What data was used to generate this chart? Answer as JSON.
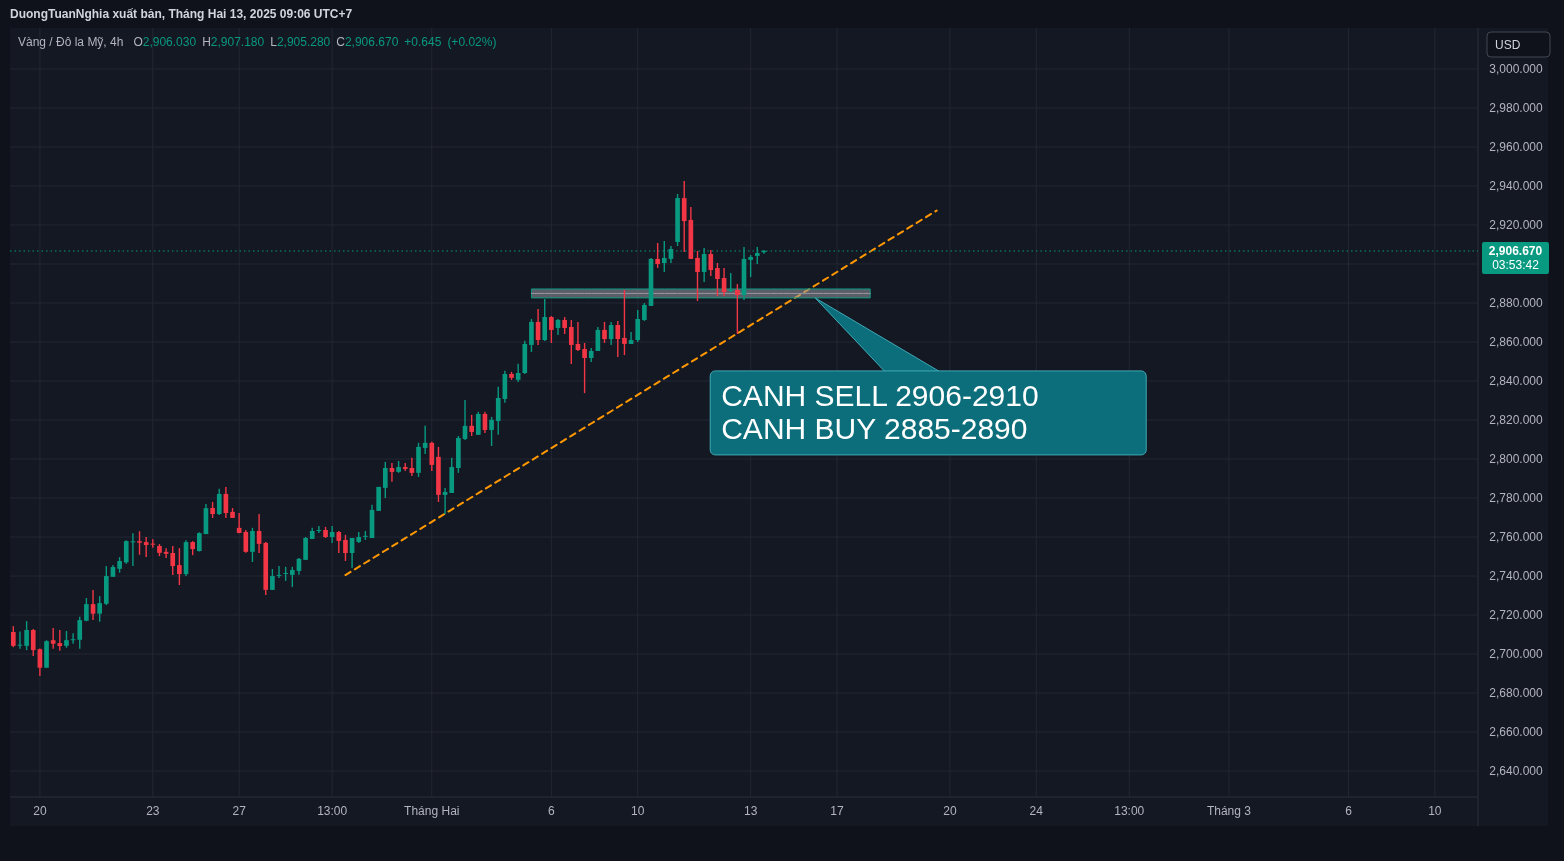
{
  "chart_data": {
    "type": "candlestick",
    "title": "Vàng / Đô la Mỹ, 4h",
    "subtitle": "O2,906.030 H2,907.180 L2,905.280 C2,906.670 +0.645 (+0.02%)",
    "categories": [
      null,
      null,
      null,
      null,
      "20",
      null,
      null,
      null,
      null,
      null,
      null,
      null,
      null,
      null,
      null,
      null,
      null,
      null,
      null,
      null,
      null,
      "23",
      null,
      null,
      null,
      null,
      null,
      null,
      null,
      null,
      null,
      null,
      null,
      null,
      "27",
      null,
      null,
      null,
      null,
      null,
      null,
      null,
      null,
      null,
      null,
      null,
      null,
      null,
      "13:00",
      null,
      null,
      null,
      null,
      null,
      null,
      null,
      null,
      null,
      null,
      null,
      null,
      null,
      null,
      "Tháng Hai",
      null,
      null,
      null,
      null,
      null,
      null,
      null,
      null,
      null,
      null,
      null,
      null,
      null,
      null,
      null,
      null,
      null,
      "6",
      null,
      null,
      null,
      null,
      null,
      null,
      null,
      null,
      null,
      null,
      null,
      null,
      "10",
      null,
      null,
      null,
      null,
      null,
      null,
      null,
      null,
      null,
      null,
      null,
      null,
      null,
      null,
      null,
      null,
      "13",
      null,
      null,
      null,
      null,
      null,
      null,
      null,
      null,
      null,
      null,
      null,
      null,
      "17",
      null,
      null,
      null,
      null,
      null,
      null,
      null,
      null,
      null,
      null,
      null,
      null,
      null,
      null,
      null,
      null,
      "20",
      null,
      null,
      null,
      null,
      null,
      null,
      null,
      null,
      null,
      null,
      null,
      null,
      "24",
      null,
      null,
      null,
      null,
      null,
      null,
      null,
      null,
      null,
      null,
      null,
      null,
      null,
      "13:00",
      null,
      null,
      null,
      null,
      null,
      null,
      null,
      null,
      null,
      null,
      null,
      null,
      null,
      null,
      "Tháng 3",
      null,
      null,
      null,
      null,
      null,
      null,
      null,
      null,
      null,
      null,
      null,
      null,
      null,
      null,
      null,
      null,
      null,
      "6",
      null,
      null,
      null,
      null,
      null,
      null,
      null,
      null,
      null,
      null,
      null,
      null,
      "10",
      null,
      null,
      null,
      null,
      null,
      null
    ],
    "ohlc": [
      [
        2711.3,
        2714.3,
        2703.5,
        2704.2
      ],
      [
        2704.5,
        2711.5,
        2702.7,
        2704.8
      ],
      [
        2704.2,
        2716.9,
        2702,
        2712.3
      ],
      [
        2712.3,
        2712.8,
        2699,
        2702
      ],
      [
        2702.5,
        2702.9,
        2688.7,
        2693
      ],
      [
        2693,
        2707.1,
        2693,
        2706.6
      ],
      [
        2707.1,
        2713.3,
        2702.7,
        2705.3
      ],
      [
        2705.6,
        2712.3,
        2701.7,
        2704.1
      ],
      [
        2704.2,
        2711.8,
        2703.2,
        2707.1
      ],
      [
        2707.2,
        2710.7,
        2705.3,
        2707.6
      ],
      [
        2707.3,
        2719.1,
        2702.7,
        2717.4
      ],
      [
        2717.1,
        2728.7,
        2716.8,
        2725.6
      ],
      [
        2725.6,
        2732.8,
        2717.4,
        2720.7
      ],
      [
        2720.7,
        2729.7,
        2716.6,
        2726.1
      ],
      [
        2725.8,
        2745.1,
        2725.1,
        2740
      ],
      [
        2739.6,
        2745.6,
        2739.6,
        2744.6
      ],
      [
        2743.7,
        2749.7,
        2741.7,
        2747.7
      ],
      [
        2747,
        2758.4,
        2746.3,
        2757.9
      ],
      [
        2757.6,
        2762,
        2745.1,
        2757.8
      ],
      [
        2757.9,
        2763,
        2750.9,
        2757.1
      ],
      [
        2757.4,
        2760,
        2749.7,
        2755.9
      ],
      [
        2756.6,
        2758.9,
        2754.5,
        2756.2
      ],
      [
        2755.4,
        2756.4,
        2750.2,
        2751.9
      ],
      [
        2752.4,
        2754.3,
        2749.2,
        2751.4
      ],
      [
        2751.8,
        2755.4,
        2740.5,
        2745.1
      ],
      [
        2745.6,
        2754.3,
        2735.4,
        2741
      ],
      [
        2741,
        2758.4,
        2740,
        2757.4
      ],
      [
        2757.4,
        2757.9,
        2750.7,
        2753.8
      ],
      [
        2752.8,
        2762.4,
        2752.6,
        2762
      ],
      [
        2761.5,
        2776.9,
        2761.5,
        2774.8
      ],
      [
        2774.9,
        2778,
        2769.8,
        2771.8
      ],
      [
        2771.8,
        2784.7,
        2771.3,
        2782.1
      ],
      [
        2782.1,
        2785.7,
        2769.8,
        2772.3
      ],
      [
        2772.9,
        2774.9,
        2769.8,
        2769.8
      ],
      [
        2764.7,
        2772.3,
        2762,
        2762.1
      ],
      [
        2762.6,
        2763.6,
        2752,
        2752.4
      ],
      [
        2752.4,
        2764.7,
        2747.2,
        2763.1
      ],
      [
        2763.1,
        2771.8,
        2751.8,
        2756.5
      ],
      [
        2757,
        2757.5,
        2730.3,
        2732.9
      ],
      [
        2732.9,
        2743.6,
        2732.9,
        2740
      ],
      [
        2740.3,
        2745.2,
        2739,
        2740.6
      ],
      [
        2741.4,
        2744.7,
        2737.5,
        2741.6
      ],
      [
        2740.6,
        2744.7,
        2734.4,
        2743.1
      ],
      [
        2742.6,
        2749.3,
        2740.6,
        2748.8
      ],
      [
        2748.3,
        2760,
        2748.3,
        2759.5
      ],
      [
        2759,
        2764.7,
        2759,
        2763.1
      ],
      [
        2763.3,
        2765.7,
        2762.1,
        2763.6
      ],
      [
        2763.6,
        2765.2,
        2759.5,
        2760
      ],
      [
        2760,
        2765.7,
        2757,
        2762.6
      ],
      [
        2762.6,
        2763.1,
        2751.8,
        2758
      ],
      [
        2758.5,
        2761.1,
        2747.7,
        2751.8
      ],
      [
        2751.8,
        2759.5,
        2744.1,
        2759.5
      ],
      [
        2757.5,
        2762.6,
        2757,
        2760
      ],
      [
        2760.4,
        2763.1,
        2758.5,
        2760.6
      ],
      [
        2759.5,
        2776.5,
        2759.5,
        2773.9
      ],
      [
        2773.4,
        2785.7,
        2773.4,
        2785.7
      ],
      [
        2785.2,
        2798.5,
        2780,
        2795.4
      ],
      [
        2795.4,
        2798,
        2788.3,
        2793.4
      ],
      [
        2793.4,
        2799,
        2792.9,
        2795.9
      ],
      [
        2795.9,
        2798,
        2793.9,
        2794.9
      ],
      [
        2795.4,
        2800.6,
        2791.3,
        2792.9
      ],
      [
        2792.9,
        2808.3,
        2790.8,
        2806.2
      ],
      [
        2805.7,
        2817,
        2802.6,
        2808.3
      ],
      [
        2808.3,
        2808.8,
        2793.9,
        2797
      ],
      [
        2801.1,
        2806.2,
        2778,
        2781.6
      ],
      [
        2781.6,
        2785.2,
        2771.8,
        2783.1
      ],
      [
        2782.6,
        2800.6,
        2782.6,
        2795.9
      ],
      [
        2795.4,
        2811.8,
        2792.9,
        2810.8
      ],
      [
        2810.3,
        2830.3,
        2809.8,
        2817
      ],
      [
        2817,
        2822.6,
        2811.8,
        2813.9
      ],
      [
        2812.4,
        2824.2,
        2812.4,
        2823.1
      ],
      [
        2823.1,
        2824.2,
        2813.4,
        2814.9
      ],
      [
        2814.9,
        2821.6,
        2806.7,
        2820.1
      ],
      [
        2819.5,
        2837,
        2812.4,
        2831.3
      ],
      [
        2830.8,
        2845.2,
        2828.8,
        2843.6
      ],
      [
        2843.6,
        2844.7,
        2840.6,
        2841.6
      ],
      [
        2840.6,
        2848.8,
        2839.5,
        2844.1
      ],
      [
        2844.1,
        2860.6,
        2843.6,
        2859
      ],
      [
        2858.5,
        2871.8,
        2854.9,
        2870.3
      ],
      [
        2870.3,
        2876.9,
        2858.5,
        2861
      ],
      [
        2861,
        2882.1,
        2860.5,
        2872.8
      ],
      [
        2872.8,
        2873.3,
        2859.5,
        2866.2
      ],
      [
        2867.2,
        2871.8,
        2863.6,
        2871.3
      ],
      [
        2871.3,
        2872.8,
        2864.1,
        2867.2
      ],
      [
        2867.7,
        2871.3,
        2848.7,
        2858.5
      ],
      [
        2859,
        2870.3,
        2855.4,
        2855.9
      ],
      [
        2856.4,
        2859.5,
        2833.8,
        2851.8
      ],
      [
        2851.8,
        2856.9,
        2849.7,
        2855.4
      ],
      [
        2855.4,
        2867.7,
        2855.4,
        2866.2
      ],
      [
        2866.2,
        2870.3,
        2859.5,
        2861.5
      ],
      [
        2861.5,
        2870.3,
        2858.5,
        2868.7
      ],
      [
        2868.7,
        2870.8,
        2852.3,
        2861.5
      ],
      [
        2862.1,
        2886.7,
        2853.3,
        2859
      ],
      [
        2859,
        2865.1,
        2859,
        2861
      ],
      [
        2861,
        2876.4,
        2860,
        2871.8
      ],
      [
        2871.3,
        2880,
        2870.8,
        2879
      ],
      [
        2878.5,
        2903.1,
        2878.5,
        2902.6
      ],
      [
        2902.6,
        2910.8,
        2898,
        2900
      ],
      [
        2900.5,
        2911.8,
        2895.9,
        2903.1
      ],
      [
        2902.6,
        2909.2,
        2900.5,
        2907.7
      ],
      [
        2911.3,
        2935.9,
        2909.2,
        2933.8
      ],
      [
        2933.8,
        2942.6,
        2906.1,
        2922
      ],
      [
        2922.6,
        2929.2,
        2902.6,
        2902.6
      ],
      [
        2903.1,
        2906.7,
        2881,
        2895.9
      ],
      [
        2895.9,
        2908.2,
        2890.8,
        2905.1
      ],
      [
        2905.1,
        2907.2,
        2893.8,
        2896.9
      ],
      [
        2897.9,
        2900.5,
        2883.6,
        2892.3
      ],
      [
        2892.8,
        2897.9,
        2883.6,
        2885.6
      ],
      [
        2886.4,
        2895.4,
        2885.6,
        2886.7
      ],
      [
        2886.7,
        2889.7,
        2864.1,
        2884.1
      ],
      [
        2884.1,
        2908.7,
        2881.5,
        2902.6
      ],
      [
        2902.1,
        2904.6,
        2893.3,
        2903.6
      ],
      [
        2904.1,
        2908.7,
        2900,
        2905.6
      ],
      [
        2906.03,
        2907.18,
        2905.28,
        2906.67
      ],
      null,
      null,
      null,
      null,
      null,
      null,
      null,
      null,
      null,
      null,
      null,
      null,
      null,
      null,
      null,
      null,
      null,
      null,
      null,
      null,
      null,
      null,
      null,
      null,
      null,
      null,
      null,
      null,
      null,
      null,
      null,
      null,
      null,
      null,
      null,
      null,
      null,
      null,
      null,
      null,
      null,
      null,
      null,
      null,
      null,
      null,
      null,
      null,
      null,
      null,
      null,
      null,
      null,
      null,
      null,
      null,
      null,
      null,
      null,
      null,
      null,
      null,
      null,
      null,
      null,
      null,
      null,
      null,
      null,
      null,
      null,
      null,
      null,
      null,
      null,
      null,
      null,
      null,
      null,
      null,
      null,
      null,
      null,
      null,
      null,
      null,
      null,
      null,
      null,
      null,
      null,
      null,
      null,
      null,
      null,
      null,
      null,
      null,
      null,
      null,
      null,
      null,
      null,
      null,
      null,
      null,
      null
    ],
    "colors": [
      "#f23645",
      "#089981",
      "#089981",
      "#f23645",
      "#f23645",
      "#089981",
      "#f23645",
      "#f23645",
      "#089981",
      "#089981",
      "#089981",
      "#089981",
      "#f23645",
      "#089981",
      "#089981",
      "#089981",
      "#089981",
      "#089981",
      "#089981",
      "#f23645",
      "#f23645",
      "#f23645",
      "#f23645",
      "#f23645",
      "#f23645",
      "#f23645",
      "#089981",
      "#f23645",
      "#089981",
      "#089981",
      "#f23645",
      "#089981",
      "#f23645",
      "#f23645",
      "#f23645",
      "#f23645",
      "#089981",
      "#f23645",
      "#f23645",
      "#089981",
      "#089981",
      "#089981",
      "#089981",
      "#089981",
      "#089981",
      "#089981",
      "#089981",
      "#f23645",
      "#089981",
      "#f23645",
      "#f23645",
      "#089981",
      "#089981",
      "#089981",
      "#089981",
      "#089981",
      "#089981",
      "#f23645",
      "#089981",
      "#f23645",
      "#f23645",
      "#089981",
      "#089981",
      "#f23645",
      "#f23645",
      "#089981",
      "#089981",
      "#089981",
      "#089981",
      "#f23645",
      "#089981",
      "#f23645",
      "#089981",
      "#089981",
      "#089981",
      "#f23645",
      "#089981",
      "#089981",
      "#089981",
      "#f23645",
      "#089981",
      "#f23645",
      "#089981",
      "#f23645",
      "#f23645",
      "#f23645",
      "#f23645",
      "#089981",
      "#089981",
      "#f23645",
      "#089981",
      "#f23645",
      "#f23645",
      "#089981",
      "#089981",
      "#089981",
      "#089981",
      "#f23645",
      "#089981",
      "#089981",
      "#089981",
      "#f23645",
      "#f23645",
      "#f23645",
      "#089981",
      "#f23645",
      "#f23645",
      "#f23645",
      "#089981",
      "#f23645",
      "#089981",
      "#089981",
      "#089981",
      "#089981",
      null,
      null,
      null,
      null,
      null,
      null,
      null,
      null,
      null,
      null,
      null,
      null,
      null,
      null,
      null,
      null,
      null,
      null,
      null,
      null,
      null,
      null,
      null,
      null,
      null,
      null,
      null,
      null,
      null,
      null,
      null,
      null,
      null,
      null,
      null,
      null,
      null,
      null,
      null,
      null,
      null,
      null,
      null,
      null,
      null,
      null,
      null,
      null,
      null,
      null,
      null,
      null,
      null,
      null,
      null,
      null,
      null,
      null,
      null,
      null,
      null,
      null,
      null,
      null,
      null,
      null,
      null,
      null,
      null,
      null,
      null,
      null,
      null,
      null,
      null,
      null,
      null,
      null,
      null,
      null,
      null,
      null,
      null,
      null,
      null,
      null,
      null,
      null,
      null,
      null,
      null,
      null,
      null,
      null,
      null,
      null,
      null,
      null,
      null,
      null,
      null,
      null,
      null,
      null,
      null,
      null,
      null
    ],
    "series": [
      {
        "type": "line",
        "color": "#ff9800",
        "line_style": "dashed",
        "values": [
          null,
          null,
          null,
          null,
          null,
          null,
          null,
          null,
          null,
          null,
          null,
          null,
          null,
          null,
          null,
          null,
          null,
          null,
          null,
          null,
          null,
          null,
          null,
          null,
          null,
          null,
          null,
          null,
          null,
          null,
          null,
          null,
          null,
          null,
          null,
          null,
          null,
          null,
          null,
          null,
          null,
          null,
          null,
          null,
          null,
          null,
          null,
          null,
          null,
          null,
          2740.5,
          2742.6,
          2744.7,
          2746.8,
          2748.9,
          2751,
          2753.1,
          2755.2,
          2757.3,
          2759.4,
          2761.5,
          2763.6,
          2765.7,
          2767.8,
          2769.9,
          2772,
          2774.1,
          2776.2,
          2778.3,
          2780.4,
          2782.5,
          2784.6,
          2786.7,
          2788.8,
          2790.9,
          2793,
          2795.1,
          2797.2,
          2799.3,
          2801.4,
          2803.5,
          2805.6,
          2807.7,
          2809.8,
          2811.9,
          2814,
          2816.1,
          2818.2,
          2820.3,
          2822.4,
          2824.5,
          2826.6,
          2828.7,
          2830.8,
          2832.9,
          2835,
          2837.1,
          2839.2,
          2841.3,
          2843.4,
          2845.5,
          2847.6,
          2849.7,
          2851.8,
          2853.9,
          2856,
          2858.1,
          2860.2,
          2862.3,
          2864.4,
          2866.5,
          2868.6,
          2870.7,
          2872.8,
          2874.9,
          2877,
          2879.1,
          2881.2,
          2883.3,
          2885.4,
          2887.5,
          2889.6,
          2891.7,
          2893.8,
          2895.9,
          2898,
          2900.1,
          2902.2,
          2904.3,
          2906.4,
          2908.5,
          2910.6,
          2912.7,
          2914.8,
          2916.9,
          2919,
          2921.1,
          2923.2,
          2925.3,
          2927.4,
          null,
          null,
          null,
          null,
          null,
          null,
          null,
          null,
          null,
          null,
          null,
          null,
          null,
          null,
          null,
          null,
          null,
          null,
          null,
          null,
          null,
          null,
          null,
          null,
          null,
          null,
          null,
          null,
          null,
          null,
          null,
          null,
          null,
          null,
          null,
          null,
          null,
          null,
          null,
          null,
          null,
          null,
          null,
          null,
          null,
          null,
          null,
          null,
          null,
          null,
          null,
          null,
          null,
          null,
          null,
          null,
          null,
          null,
          null,
          null,
          null,
          null,
          null,
          null,
          null,
          null,
          null,
          null,
          null,
          null,
          null,
          null,
          null,
          null,
          null,
          null,
          null,
          null,
          null,
          null,
          null
        ]
      },
      {
        "type": "line",
        "color": "#9598a1",
        "values": [
          null,
          null,
          null,
          null,
          null,
          null,
          null,
          null,
          null,
          null,
          null,
          null,
          null,
          null,
          null,
          null,
          null,
          null,
          null,
          null,
          null,
          null,
          null,
          null,
          null,
          null,
          null,
          null,
          null,
          null,
          null,
          null,
          null,
          null,
          null,
          null,
          null,
          null,
          null,
          null,
          null,
          null,
          null,
          null,
          null,
          null,
          null,
          null,
          null,
          null,
          null,
          null,
          null,
          null,
          null,
          null,
          null,
          null,
          null,
          null,
          null,
          null,
          null,
          null,
          null,
          null,
          null,
          null,
          null,
          null,
          null,
          null,
          null,
          null,
          null,
          null,
          null,
          null,
          2884.9,
          2884.9,
          2884.9,
          2884.9,
          2884.9,
          2884.9,
          2884.9,
          2884.9,
          2884.9,
          2884.9,
          2884.9,
          2884.9,
          2884.9,
          2884.9,
          2884.9,
          2884.9,
          2884.9,
          2884.9,
          2884.9,
          2884.9,
          2884.9,
          2884.9,
          2884.9,
          2884.9,
          2884.9,
          2884.9,
          2884.9,
          2884.9,
          2884.9,
          2884.9,
          2884.9,
          2884.9,
          2884.9,
          2884.9,
          2884.9,
          2884.9,
          2884.9,
          2884.9,
          2884.9,
          2884.9,
          2884.9,
          2884.9,
          2884.9,
          2884.9,
          2884.9,
          2884.9,
          2884.9,
          2884.9,
          2884.9,
          2884.9,
          2884.9,
          2884.9,
          null,
          null,
          null,
          null,
          null,
          null,
          null,
          null,
          null,
          null,
          null,
          null,
          null,
          null,
          null,
          null,
          null,
          null,
          null,
          null,
          null,
          null,
          null,
          null,
          null,
          null,
          null,
          null,
          null,
          null,
          null,
          null,
          null,
          null,
          null,
          null,
          null,
          null,
          null,
          null,
          null,
          null,
          null,
          null,
          null,
          null,
          null,
          null,
          null,
          null,
          null,
          null,
          null,
          null,
          null,
          null,
          null,
          null,
          null,
          null,
          null,
          null,
          null,
          null,
          null,
          null,
          null,
          null,
          null,
          null,
          null,
          null,
          null,
          null,
          null,
          null,
          null,
          null,
          null,
          null,
          null,
          null,
          null,
          null,
          null,
          null,
          null,
          null,
          null,
          null,
          null
        ],
        "lower": [
          null,
          null,
          null,
          null,
          null,
          null,
          null,
          null,
          null,
          null,
          null,
          null,
          null,
          null,
          null,
          null,
          null,
          null,
          null,
          null,
          null,
          null,
          null,
          null,
          null,
          null,
          null,
          null,
          null,
          null,
          null,
          null,
          null,
          null,
          null,
          null,
          null,
          null,
          null,
          null,
          null,
          null,
          null,
          null,
          null,
          null,
          null,
          null,
          null,
          null,
          null,
          null,
          null,
          null,
          null,
          null,
          null,
          null,
          null,
          null,
          null,
          null,
          null,
          null,
          null,
          null,
          null,
          null,
          null,
          null,
          null,
          null,
          null,
          null,
          null,
          null,
          null,
          null,
          2882.6,
          2882.6,
          2882.6,
          2882.6,
          2882.6,
          2882.6,
          2882.6,
          2882.6,
          2882.6,
          2882.6,
          2882.6,
          2882.6,
          2882.6,
          2882.6,
          2882.6,
          2882.6,
          2882.6,
          2882.6,
          2882.6,
          2882.6,
          2882.6,
          2882.6,
          2882.6,
          2882.6,
          2882.6,
          2882.6,
          2882.6,
          2882.6,
          2882.6,
          2882.6,
          2882.6,
          2882.6,
          2882.6,
          2882.6,
          2882.6,
          2882.6,
          2882.6,
          2882.6,
          2882.6,
          2882.6,
          2882.6,
          2882.6,
          2882.6,
          2882.6,
          2882.6,
          2882.6,
          2882.6,
          2882.6,
          2882.6,
          2882.6,
          2882.6,
          2882.6,
          null,
          null,
          null,
          null,
          null,
          null,
          null,
          null,
          null,
          null,
          null,
          null,
          null,
          null,
          null,
          null,
          null,
          null,
          null,
          null,
          null,
          null,
          null,
          null,
          null,
          null,
          null,
          null,
          null,
          null,
          null,
          null,
          null,
          null,
          null,
          null,
          null,
          null,
          null,
          null,
          null,
          null,
          null,
          null,
          null,
          null,
          null,
          null,
          null,
          null,
          null,
          null,
          null,
          null,
          null,
          null,
          null,
          null,
          null,
          null,
          null,
          null,
          null,
          null,
          null,
          null,
          null,
          null,
          null,
          null,
          null,
          null,
          null,
          null,
          null,
          null,
          null,
          null,
          null,
          null,
          null,
          null,
          null,
          null,
          null,
          null,
          null,
          null,
          null,
          null,
          null
        ],
        "upper": [
          null,
          null,
          null,
          null,
          null,
          null,
          null,
          null,
          null,
          null,
          null,
          null,
          null,
          null,
          null,
          null,
          null,
          null,
          null,
          null,
          null,
          null,
          null,
          null,
          null,
          null,
          null,
          null,
          null,
          null,
          null,
          null,
          null,
          null,
          null,
          null,
          null,
          null,
          null,
          null,
          null,
          null,
          null,
          null,
          null,
          null,
          null,
          null,
          null,
          null,
          null,
          null,
          null,
          null,
          null,
          null,
          null,
          null,
          null,
          null,
          null,
          null,
          null,
          null,
          null,
          null,
          null,
          null,
          null,
          null,
          null,
          null,
          null,
          null,
          null,
          null,
          null,
          null,
          2887.2,
          2887.2,
          2887.2,
          2887.2,
          2887.2,
          2887.2,
          2887.2,
          2887.2,
          2887.2,
          2887.2,
          2887.2,
          2887.2,
          2887.2,
          2887.2,
          2887.2,
          2887.2,
          2887.2,
          2887.2,
          2887.2,
          2887.2,
          2887.2,
          2887.2,
          2887.2,
          2887.2,
          2887.2,
          2887.2,
          2887.2,
          2887.2,
          2887.2,
          2887.2,
          2887.2,
          2887.2,
          2887.2,
          2887.2,
          2887.2,
          2887.2,
          2887.2,
          2887.2,
          2887.2,
          2887.2,
          2887.2,
          2887.2,
          2887.2,
          2887.2,
          2887.2,
          2887.2,
          2887.2,
          2887.2,
          2887.2,
          2887.2,
          2887.2,
          2887.2,
          null,
          null,
          null,
          null,
          null,
          null,
          null,
          null,
          null,
          null,
          null,
          null,
          null,
          null,
          null,
          null,
          null,
          null,
          null,
          null,
          null,
          null,
          null,
          null,
          null,
          null,
          null,
          null,
          null,
          null,
          null,
          null,
          null,
          null,
          null,
          null,
          null,
          null,
          null,
          null,
          null,
          null,
          null,
          null,
          null,
          null,
          null,
          null,
          null,
          null,
          null,
          null,
          null,
          null,
          null,
          null,
          null,
          null,
          null,
          null,
          null,
          null,
          null,
          null,
          null,
          null,
          null,
          null,
          null,
          null,
          null,
          null,
          null,
          null,
          null,
          null,
          null,
          null,
          null,
          null,
          null,
          null,
          null,
          null,
          null,
          null,
          null,
          null,
          null,
          null,
          null
        ]
      }
    ],
    "ref_lines": [
      {
        "axis": "y",
        "value": 2906.67,
        "label": "2,906.670",
        "color": "#089981",
        "line_style": "dotted"
      }
    ],
    "annotations": [
      "DuongTuanNghia xuất bản, Tháng Hai 13, 2025 09:06 UTC+7",
      "CANH SELL 2906-2910\nCANH BUY 2885-2890",
      "USD",
      "03:53:42"
    ],
    "ylim": [
      2626.7,
      3021
    ],
    "yticks": [
      {
        "value": 2640,
        "label": "2,640.000"
      },
      {
        "value": 2660,
        "label": "2,660.000"
      },
      {
        "value": 2680,
        "label": "2,680.000"
      },
      {
        "value": 2700,
        "label": "2,700.000"
      },
      {
        "value": 2720,
        "label": "2,720.000"
      },
      {
        "value": 2740,
        "label": "2,740.000"
      },
      {
        "value": 2760,
        "label": "2,760.000"
      },
      {
        "value": 2780,
        "label": "2,780.000"
      },
      {
        "value": 2800,
        "label": "2,800.000"
      },
      {
        "value": 2820,
        "label": "2,820.000"
      },
      {
        "value": 2840,
        "label": "2,840.000"
      },
      {
        "value": 2860,
        "label": "2,860.000"
      },
      {
        "value": 2880,
        "label": "2,880.000"
      },
      {
        "value": 2900,
        "label": null
      },
      {
        "value": 2920,
        "label": "2,920.000"
      },
      {
        "value": 2940,
        "label": "2,940.000"
      },
      {
        "value": 2960,
        "label": "2,960.000"
      },
      {
        "value": 2980,
        "label": "2,980.000"
      },
      {
        "value": 3000,
        "label": "3,000.000"
      }
    ],
    "grid": true
  }
}
